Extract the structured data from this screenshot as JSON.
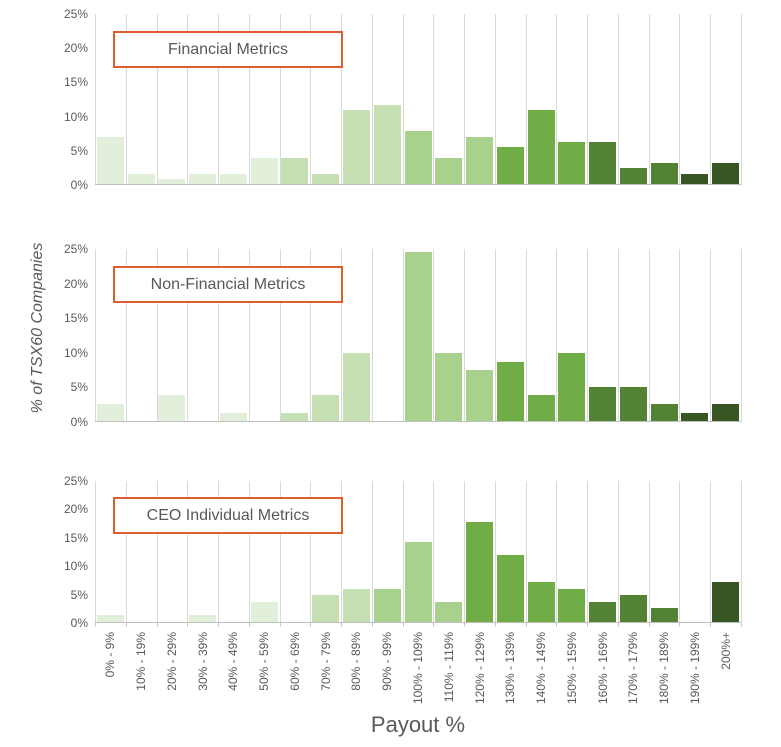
{
  "figure": {
    "x_axis_title": "Payout %",
    "y_axis_title": "% of TSX60 Companies",
    "y_tick_labels": [
      "25%",
      "20%",
      "15%",
      "10%",
      "5%",
      "0%"
    ],
    "y_tick_values": [
      25,
      20,
      15,
      10,
      5,
      0
    ]
  },
  "colors": {
    "green_palette_light_to_dark": [
      "#E2EFDA",
      "#C6E0B4",
      "#A9D18E",
      "#70AD47",
      "#548235",
      "#375623"
    ],
    "gridline": "#D9D9D9",
    "axis_line": "#BFBFBF",
    "text": "#595959",
    "title_box_border": "#DC5E2D"
  },
  "chart_data": [
    {
      "type": "bar",
      "title": "Financial Metrics",
      "categories": [
        "0% - 9%",
        "10% - 19%",
        "20% - 29%",
        "30% - 39%",
        "40% - 49%",
        "50% - 59%",
        "60% - 69%",
        "70% - 79%",
        "80% - 89%",
        "90% - 99%",
        "100% - 109%",
        "110% - 119%",
        "120% - 129%",
        "130% - 139%",
        "140% - 149%",
        "150% - 159%",
        "160% - 169%",
        "170% - 179%",
        "180% - 189%",
        "190% - 199%",
        "200%+"
      ],
      "values": [
        6.9,
        1.5,
        0.8,
        1.5,
        1.5,
        3.8,
        3.8,
        1.5,
        10.8,
        11.5,
        7.7,
        3.8,
        6.9,
        5.4,
        10.8,
        6.2,
        6.2,
        2.3,
        3.1,
        1.5,
        3.1
      ],
      "bar_color_group": [
        0,
        0,
        0,
        0,
        0,
        0,
        1,
        1,
        1,
        1,
        2,
        2,
        2,
        3,
        3,
        3,
        4,
        4,
        4,
        5,
        5
      ],
      "xlabel": "Payout %",
      "ylabel": "% of TSX60 Companies",
      "ylim": [
        0,
        25
      ],
      "yticks": [
        0,
        5,
        10,
        15,
        20,
        25
      ],
      "grid": "vertical-only",
      "legend": "none"
    },
    {
      "type": "bar",
      "title": "Non-Financial Metrics",
      "categories": [
        "0% - 9%",
        "10% - 19%",
        "20% - 29%",
        "30% - 39%",
        "40% - 49%",
        "50% - 59%",
        "60% - 69%",
        "70% - 79%",
        "80% - 89%",
        "90% - 99%",
        "100% - 109%",
        "110% - 119%",
        "120% - 129%",
        "130% - 139%",
        "140% - 149%",
        "150% - 159%",
        "160% - 169%",
        "170% - 179%",
        "180% - 189%",
        "190% - 199%",
        "200%+"
      ],
      "values": [
        2.4,
        0,
        3.7,
        0,
        1.2,
        0,
        1.2,
        3.7,
        9.8,
        0,
        24.4,
        9.8,
        7.3,
        8.5,
        3.7,
        9.8,
        4.9,
        4.9,
        2.4,
        1.2,
        2.4
      ],
      "bar_color_group": [
        0,
        0,
        0,
        0,
        0,
        0,
        1,
        1,
        1,
        1,
        2,
        2,
        2,
        3,
        3,
        3,
        4,
        4,
        4,
        5,
        5
      ],
      "xlabel": "Payout %",
      "ylabel": "% of TSX60 Companies",
      "ylim": [
        0,
        25
      ],
      "yticks": [
        0,
        5,
        10,
        15,
        20,
        25
      ],
      "grid": "vertical-only",
      "legend": "none"
    },
    {
      "type": "bar",
      "title": "CEO Individual Metrics",
      "categories": [
        "0% - 9%",
        "10% - 19%",
        "20% - 29%",
        "30% - 39%",
        "40% - 49%",
        "50% - 59%",
        "60% - 69%",
        "70% - 79%",
        "80% - 89%",
        "90% - 99%",
        "100% - 109%",
        "110% - 119%",
        "120% - 129%",
        "130% - 139%",
        "140% - 149%",
        "150% - 159%",
        "160% - 169%",
        "170% - 179%",
        "180% - 189%",
        "190% - 199%",
        "200%+"
      ],
      "values": [
        1.2,
        0,
        0,
        1.2,
        0,
        3.5,
        0,
        4.7,
        5.9,
        5.9,
        14.1,
        3.5,
        17.6,
        11.8,
        7.1,
        5.9,
        3.5,
        4.7,
        2.4,
        0,
        7.1
      ],
      "bar_color_group": [
        0,
        0,
        0,
        0,
        0,
        0,
        1,
        1,
        1,
        2,
        2,
        2,
        3,
        3,
        3,
        3,
        4,
        4,
        4,
        5,
        5
      ],
      "xlabel": "Payout %",
      "ylabel": "% of TSX60 Companies",
      "ylim": [
        0,
        25
      ],
      "yticks": [
        0,
        5,
        10,
        15,
        20,
        25
      ],
      "grid": "vertical-only",
      "legend": "none"
    }
  ]
}
